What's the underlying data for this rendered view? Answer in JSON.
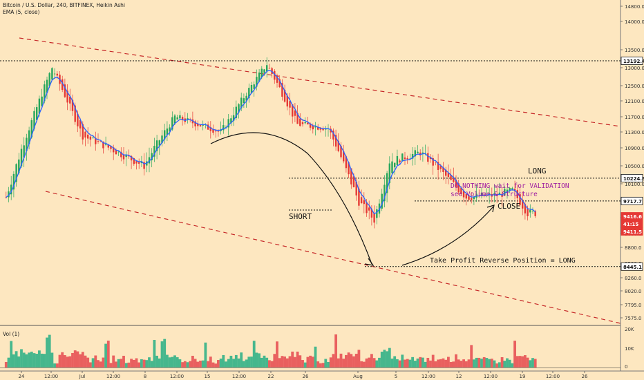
{
  "header": {
    "symbol_line": "Bitcoin / U.S. Dollar, 240, BITFINEX, Heikin Ashi",
    "indicator_line": "EMA (5, close)"
  },
  "volume_pane": {
    "label": "Vol (1)",
    "axis_labels": [
      "20K",
      "10K",
      "0"
    ]
  },
  "price_axis": {
    "ticks": [
      "14800.0",
      "14000.0",
      "13500.0",
      "13000.0",
      "12500.0",
      "12100.0",
      "11700.0",
      "11300.0",
      "10900.0",
      "10500.0",
      "10100.0",
      "9700.0",
      "9350.0",
      "9000.0",
      "8800.0",
      "8500.0",
      "8260.0",
      "8020.0",
      "7795.0",
      "7575.0"
    ],
    "badges": [
      {
        "text": "13192.4",
        "style": "line"
      },
      {
        "text": "10224.8",
        "style": "line"
      },
      {
        "text": "9717.7",
        "style": "line"
      },
      {
        "text": "9416.6",
        "style": "red"
      },
      {
        "text": "41:15",
        "style": "red"
      },
      {
        "text": "9411.5",
        "style": "red"
      },
      {
        "text": "8445.1",
        "style": "line"
      }
    ]
  },
  "time_axis": [
    "24",
    "12:00",
    "Jul",
    "12:00",
    "8",
    "12:00",
    "15",
    "12:00",
    "22",
    "26",
    "Aug",
    "5",
    "12:00",
    "12",
    "12:00",
    "19",
    "12:00",
    "26"
  ],
  "annotations": {
    "long": "LONG",
    "do_nothing": "DO NOTHING  wait for VALIDATION",
    "see_volume": "see Volume & Structure",
    "close": "CLOSE",
    "short": "SHORT",
    "take_profit": "Take Profit Reverse Position = LONG"
  },
  "colors": {
    "background": "#fde7c0",
    "bull": "#26a65b",
    "bear": "#e53935",
    "ema": "#2962ff",
    "channel": "#c62828",
    "annotation_purple": "#a020a0",
    "vol_bull": "#3cb48a",
    "vol_bear": "#e8585a"
  },
  "chart_data": {
    "type": "candlestick",
    "symbol": "Bitcoin / U.S. Dollar",
    "interval": "240",
    "exchange": "BITFINEX",
    "style": "Heikin Ashi",
    "indicator": "EMA (5, close)",
    "ylim": [
      7400,
      15000
    ],
    "horizontal_levels": [
      13192.4,
      10224.8,
      9717.7,
      8445.1
    ],
    "last_price": 9416.6,
    "last_close": 9411.5,
    "countdown": "41:15",
    "trend": [
      {
        "date": "Jun 23",
        "price": 9800
      },
      {
        "date": "Jun 26",
        "price": 13000
      },
      {
        "date": "Jun 28",
        "price": 11200
      },
      {
        "date": "Jul 2",
        "price": 10500
      },
      {
        "date": "Jul 4",
        "price": 11700
      },
      {
        "date": "Jul 7",
        "price": 11300
      },
      {
        "date": "Jul 10",
        "price": 13100
      },
      {
        "date": "Jul 12",
        "price": 11500
      },
      {
        "date": "Jul 14",
        "price": 11400
      },
      {
        "date": "Jul 16",
        "price": 9700
      },
      {
        "date": "Jul 17",
        "price": 9300
      },
      {
        "date": "Jul 18",
        "price": 10600
      },
      {
        "date": "Jul 20",
        "price": 10800
      },
      {
        "date": "Jul 21",
        "price": 10500
      },
      {
        "date": "Jul 23",
        "price": 9800
      },
      {
        "date": "Jul 25",
        "price": 9850
      },
      {
        "date": "Jul 26",
        "price": 9950
      },
      {
        "date": "Jul 27",
        "price": 9450
      }
    ]
  }
}
